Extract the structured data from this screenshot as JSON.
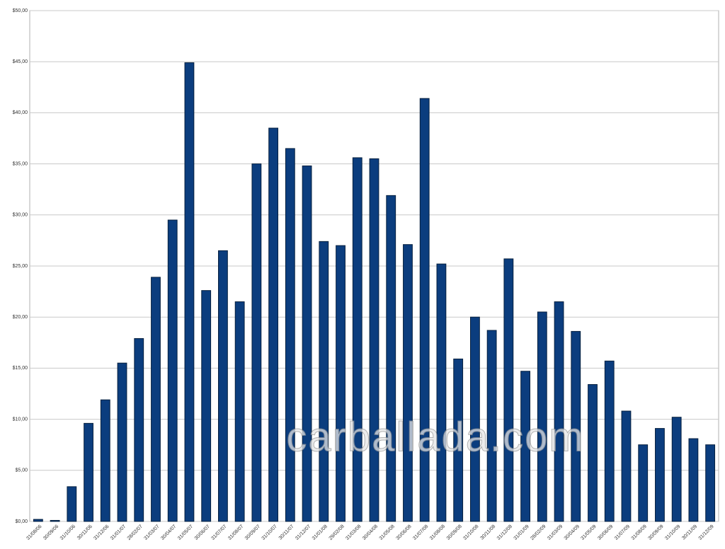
{
  "chart_data": {
    "type": "bar",
    "categories": [
      "31/08/06",
      "30/09/06",
      "31/10/06",
      "30/11/06",
      "31/12/06",
      "31/01/07",
      "28/02/07",
      "31/03/07",
      "30/04/07",
      "31/05/07",
      "30/06/07",
      "31/07/07",
      "31/08/07",
      "30/09/07",
      "31/10/07",
      "30/11/07",
      "31/12/07",
      "31/01/08",
      "29/02/08",
      "31/03/08",
      "30/04/08",
      "31/05/08",
      "30/06/08",
      "31/07/08",
      "31/08/08",
      "30/09/08",
      "31/10/08",
      "30/11/08",
      "31/12/08",
      "31/01/09",
      "28/02/09",
      "31/03/09",
      "30/04/09",
      "31/05/09",
      "30/06/09",
      "31/07/09",
      "31/08/09",
      "30/09/09",
      "31/10/09",
      "30/11/09",
      "31/12/09"
    ],
    "values": [
      0.2,
      0.1,
      3.4,
      9.6,
      11.9,
      15.5,
      17.9,
      23.9,
      29.5,
      44.9,
      22.6,
      26.5,
      21.5,
      35.0,
      38.5,
      36.5,
      34.8,
      27.4,
      27.0,
      35.6,
      35.5,
      31.9,
      27.1,
      41.4,
      25.2,
      15.9,
      20.0,
      18.7,
      25.7,
      14.7,
      20.5,
      21.5,
      18.6,
      13.4,
      15.7,
      10.8,
      7.5,
      9.1,
      10.2,
      8.1,
      7.5
    ],
    "color": "#0b3d7e",
    "ylim": [
      0,
      50
    ],
    "yticks": [
      {
        "value": 0,
        "label": "$0,00"
      },
      {
        "value": 5,
        "label": "$5,00"
      },
      {
        "value": 10,
        "label": "$10,00"
      },
      {
        "value": 15,
        "label": "$15,00"
      },
      {
        "value": 20,
        "label": "$20,00"
      },
      {
        "value": 25,
        "label": "$25,00"
      },
      {
        "value": 30,
        "label": "$30,00"
      },
      {
        "value": 35,
        "label": "$35,00"
      },
      {
        "value": 40,
        "label": "$40,00"
      },
      {
        "value": 45,
        "label": "$45,00"
      },
      {
        "value": 50,
        "label": "$50,00"
      }
    ],
    "grid": true,
    "watermark": "carballada.com"
  }
}
